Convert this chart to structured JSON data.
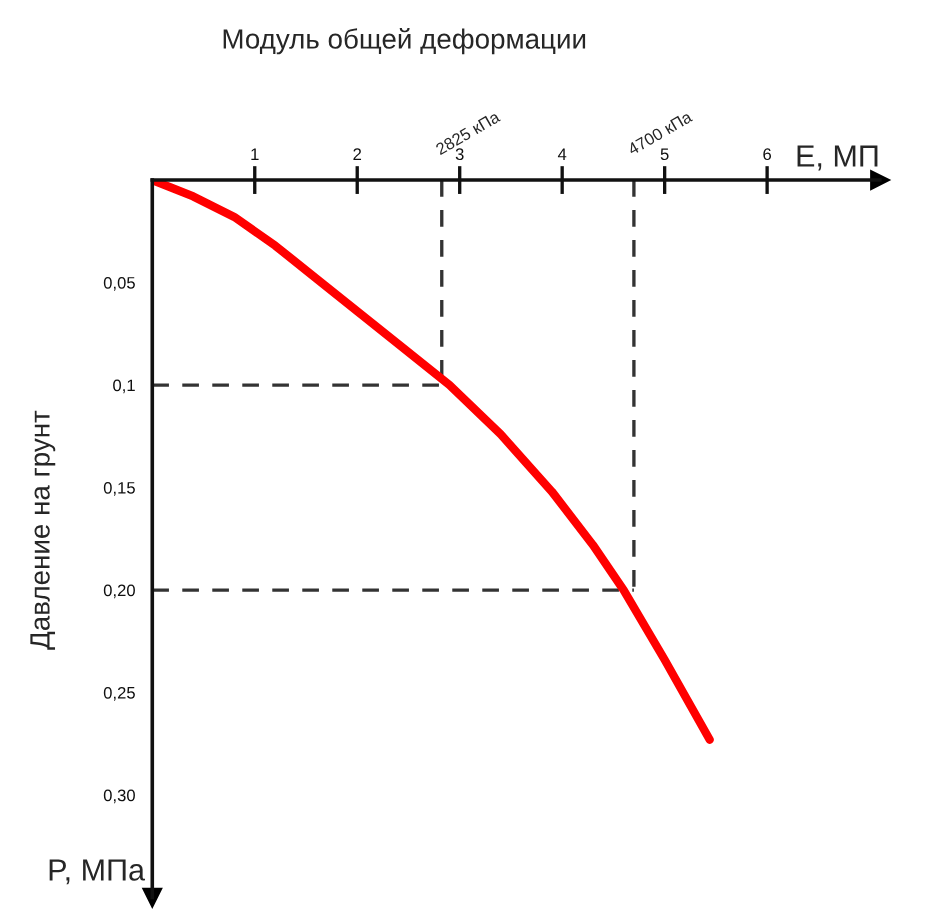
{
  "chart_data": {
    "type": "line",
    "title": "Модуль общей деформации",
    "xlabel": "E, МП",
    "ylabel": "Давление на грунт",
    "y2label": "P, МПа",
    "x": [
      0,
      0.4,
      0.8,
      1.2,
      1.6,
      2.0,
      2.4,
      2.9,
      3.4,
      3.9,
      4.3,
      4.6,
      5.0,
      5.44
    ],
    "series": [
      {
        "color": "#ff0000",
        "values": [
          0,
          0.008,
          0.018,
          0.032,
          0.048,
          0.064,
          0.08,
          0.1,
          0.124,
          0.152,
          0.178,
          0.2,
          0.234,
          0.273
        ]
      }
    ],
    "xlim": [
      0,
      7.1
    ],
    "xticks": [
      1,
      2,
      3,
      4,
      5,
      6
    ],
    "ylim": [
      0.35,
      0
    ],
    "yticks": [
      {
        "value": 0.05,
        "label": "0,05"
      },
      {
        "value": 0.1,
        "label": "0,1"
      },
      {
        "value": 0.15,
        "label": "0,15"
      },
      {
        "value": 0.2,
        "label": "0,20"
      },
      {
        "value": 0.25,
        "label": "0,25"
      },
      {
        "value": 0.3,
        "label": "0,30"
      }
    ],
    "ref_lines": [
      {
        "axis": "x",
        "value": 2.825,
        "label": "2825 кПа",
        "color": "#000000",
        "line_style": "dashed"
      },
      {
        "axis": "x",
        "value": 4.7,
        "label": "4700 кПа",
        "color": "#000000",
        "line_style": "dashed"
      },
      {
        "axis": "y",
        "value": 0.1,
        "color": "#000000",
        "line_style": "dashed"
      },
      {
        "axis": "y",
        "value": 0.2,
        "color": "#000000",
        "line_style": "dashed"
      }
    ],
    "grid": false,
    "legend": false,
    "marker": "none",
    "line_style": "solid"
  }
}
